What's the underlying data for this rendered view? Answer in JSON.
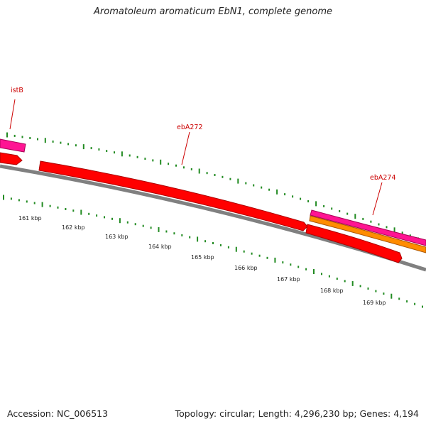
{
  "title": "Aromatoleum aromaticum EbN1, complete genome",
  "footer": {
    "accession": "Accession: NC_006513",
    "stats": "Topology: circular; Length: 4,296,230 bp; Genes: 4,194"
  },
  "colors": {
    "gene_forward": "#ff0000",
    "gene_magenta": "#ff1493",
    "gene_orange": "#ff8c00",
    "backbone": "#808080",
    "ticks": "#228b22",
    "label": "#cc0000"
  },
  "gene_labels": [
    {
      "id": "istB",
      "text": "istB"
    },
    {
      "id": "ebA272",
      "text": "ebA272"
    },
    {
      "id": "ebA274",
      "text": "ebA274"
    }
  ],
  "scale_labels": [
    "161 kbp",
    "162 kbp",
    "163 kbp",
    "164 kbp",
    "165 kbp",
    "166 kbp",
    "167 kbp",
    "168 kbp",
    "169 kbp"
  ]
}
